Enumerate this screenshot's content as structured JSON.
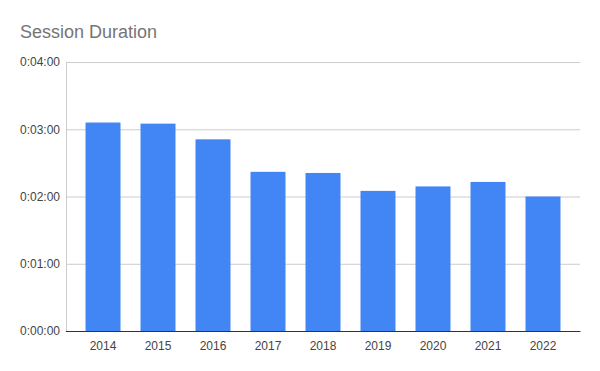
{
  "chart_data": {
    "type": "bar",
    "title": "Session Duration",
    "categories": [
      "2014",
      "2015",
      "2016",
      "2017",
      "2018",
      "2019",
      "2020",
      "2021",
      "2022"
    ],
    "values": [
      186,
      185,
      171,
      142,
      141,
      125,
      129,
      133,
      120
    ],
    "color": "#4285f4",
    "ylim": [
      0,
      240
    ],
    "yticks": [
      {
        "value": 0,
        "label": "0:00:00"
      },
      {
        "value": 60,
        "label": "0:01:00"
      },
      {
        "value": 120,
        "label": "0:02:00"
      },
      {
        "value": 180,
        "label": "0:03:00"
      },
      {
        "value": 240,
        "label": "0:04:00"
      }
    ],
    "grid": true
  }
}
